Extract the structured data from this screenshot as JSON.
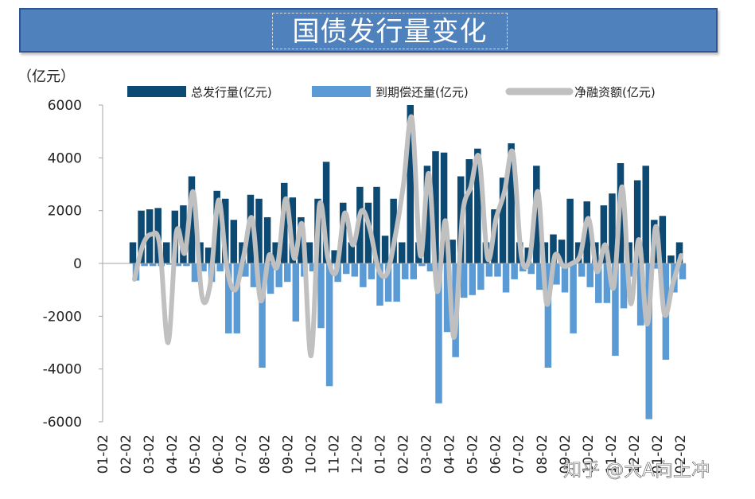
{
  "title": "国债发行量变化",
  "watermark": "知乎 @大A向上冲",
  "chart_data": {
    "type": "bar",
    "unit_label": "（亿元）",
    "ylim": [
      -6000,
      6000
    ],
    "yticks": [
      6000,
      4000,
      2000,
      0,
      -2000,
      -4000,
      -6000
    ],
    "ytick_labels": [
      "6000",
      "4000",
      "2000",
      "0",
      "-2000",
      "-4000",
      "-6000"
    ],
    "xtick_labels": [
      "01-02",
      "02-02",
      "03-02",
      "04-02",
      "05-02",
      "06-02",
      "07-02",
      "08-02",
      "09-02",
      "10-02",
      "11-02",
      "12-02",
      "01-02",
      "02-02",
      "03-02",
      "04-02",
      "05-02",
      "06-02",
      "07-02",
      "08-02",
      "09-02",
      "10-02",
      "11-02",
      "12-02",
      "01-02",
      "02-02"
    ],
    "legend": [
      "总发行量(亿元)",
      "到期偿还量(亿元)",
      "净融资额(亿元)"
    ],
    "legend_position": "top",
    "colors": {
      "issuance": "#0d4a73",
      "maturity": "#5b9bd5",
      "net": "#c0c0c0"
    },
    "series": [
      {
        "name": "总发行量(亿元)",
        "values": [
          800,
          2000,
          2050,
          2100,
          800,
          2000,
          2200,
          3300,
          800,
          600,
          2750,
          2450,
          1650,
          800,
          2600,
          2450,
          1750,
          800,
          3050,
          2500,
          1750,
          800,
          2450,
          3850,
          500,
          2300,
          800,
          2900,
          2300,
          2900,
          1050,
          2450,
          800,
          6000,
          800,
          3700,
          4250,
          4200,
          900,
          3300,
          3950,
          4350,
          800,
          2050,
          3250,
          4550,
          800,
          600,
          3700,
          800,
          1100,
          900,
          2450,
          800,
          2350,
          800,
          2200,
          2650,
          3800,
          800,
          3150,
          3700,
          1650,
          1800,
          300,
          800
        ]
      },
      {
        "name": "到期偿还量(亿元)",
        "values": [
          -650,
          -100,
          -100,
          -100,
          -50,
          -100,
          -100,
          -700,
          -300,
          -700,
          -300,
          -2650,
          -2650,
          -500,
          -900,
          -3950,
          -1150,
          -900,
          -700,
          -2200,
          -500,
          -300,
          -2450,
          -4650,
          -700,
          -400,
          -500,
          -900,
          -600,
          -1600,
          -1450,
          -1450,
          -600,
          -600,
          -100,
          -300,
          -5300,
          -2600,
          -3550,
          -1300,
          -1200,
          -1000,
          -500,
          -500,
          -1100,
          -600,
          -300,
          -400,
          -1000,
          -3950,
          -800,
          -1100,
          -2650,
          -500,
          -900,
          -1500,
          -1500,
          -3500,
          -1700,
          -500,
          -2350,
          -5900,
          -200,
          -3650,
          -1100,
          -600
        ]
      },
      {
        "name": "净融资额(亿元)",
        "values": [
          -600,
          700,
          1100,
          700,
          -3000,
          1200,
          400,
          2700,
          -1200,
          -800,
          2400,
          -200,
          -1000,
          300,
          1700,
          -1400,
          300,
          -100,
          2450,
          200,
          1400,
          -3500,
          2200,
          200,
          -300,
          1900,
          700,
          2000,
          1300,
          -200,
          -400,
          1000,
          3000,
          5500,
          300,
          3400,
          -1050,
          1600,
          -2800,
          1800,
          2900,
          4000,
          200,
          1700,
          2700,
          4200,
          300,
          200,
          2700,
          -1500,
          300,
          -100,
          0,
          300,
          1700,
          -300,
          700,
          -900,
          2900,
          -1500,
          900,
          -2300,
          1400,
          -1900,
          -800,
          300
        ]
      }
    ]
  }
}
